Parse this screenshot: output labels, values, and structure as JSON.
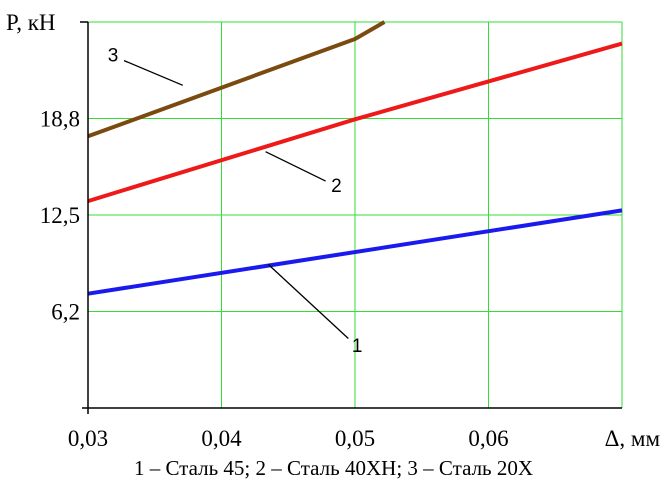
{
  "chart_data": {
    "type": "line",
    "ylabel": "P, кН",
    "xlabel": "Δ, мм",
    "xlim": [
      0.03,
      0.07
    ],
    "ylim": [
      0,
      25
    ],
    "x_ticks": [
      {
        "value": 0.03,
        "label": "0,03"
      },
      {
        "value": 0.04,
        "label": "0,04"
      },
      {
        "value": 0.05,
        "label": "0,05"
      },
      {
        "value": 0.06,
        "label": "0,06"
      },
      {
        "value": 0.07,
        "label": ""
      }
    ],
    "y_ticks": [
      {
        "value": 6.25,
        "label": "6,2"
      },
      {
        "value": 12.5,
        "label": "12,5"
      },
      {
        "value": 18.75,
        "label": "18,8"
      },
      {
        "value": 25,
        "label": ""
      }
    ],
    "grid": true,
    "colors": {
      "grid": "#33dd33",
      "axis": "#000000"
    },
    "series": [
      {
        "label": "1",
        "color": "#1a1aee",
        "x": [
          0.03,
          0.07
        ],
        "y": [
          7.4,
          12.8
        ],
        "callout": {
          "from_x": 0.0435,
          "from_y": 9.3,
          "to_x": 0.0495,
          "to_y": 4.5
        }
      },
      {
        "label": "2",
        "color": "#ee1a1a",
        "x": [
          0.03,
          0.05,
          0.07
        ],
        "y": [
          13.4,
          18.7,
          23.6
        ],
        "callout": {
          "from_x": 0.0433,
          "from_y": 16.6,
          "to_x": 0.0478,
          "to_y": 14.7
        }
      },
      {
        "label": "3",
        "color": "#7a4a10",
        "x": [
          0.03,
          0.05,
          0.0522
        ],
        "y": [
          17.6,
          23.9,
          25
        ],
        "callout": {
          "from_x": 0.0371,
          "from_y": 20.9,
          "to_x": 0.0327,
          "to_y": 22.5
        }
      }
    ]
  },
  "caption": "1 – Сталь 45; 2 – Сталь 40ХН; 3 – Сталь 20Х"
}
